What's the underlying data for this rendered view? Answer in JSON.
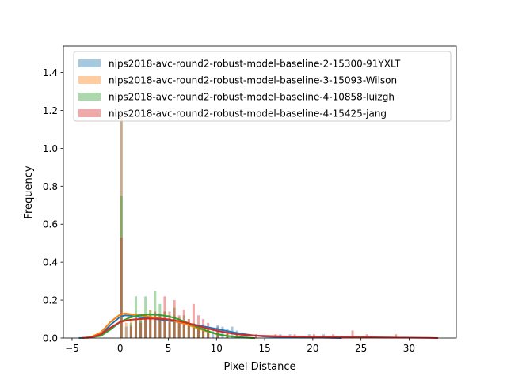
{
  "chart_data": {
    "type": "histogram",
    "title": "",
    "xlabel": "Pixel Distance",
    "ylabel": "Frequency",
    "xlim": [
      -5.9,
      34.9
    ],
    "ylim": [
      0,
      1.54
    ],
    "x_ticks": [
      -5,
      0,
      5,
      10,
      15,
      20,
      25,
      30
    ],
    "y_ticks": [
      0.0,
      0.2,
      0.4,
      0.6,
      0.8,
      1.0,
      1.2,
      1.4
    ],
    "legend_position": "top-right",
    "grid": false,
    "bin_width": 0.25,
    "series": [
      {
        "name": "nips2018-avc-round2-robust-model-baseline-2-15300-91YXLT",
        "color": "#1f77b4",
        "bars": [
          [
            0.0,
            1.15
          ],
          [
            0.5,
            0.06
          ],
          [
            1.0,
            0.07
          ],
          [
            1.5,
            0.12
          ],
          [
            2.0,
            0.09
          ],
          [
            2.5,
            0.1
          ],
          [
            3.0,
            0.13
          ],
          [
            3.5,
            0.11
          ],
          [
            4.0,
            0.09
          ],
          [
            4.5,
            0.1
          ],
          [
            5.0,
            0.08
          ],
          [
            5.5,
            0.1
          ],
          [
            6.0,
            0.09
          ],
          [
            6.5,
            0.07
          ],
          [
            7.0,
            0.08
          ],
          [
            7.5,
            0.06
          ],
          [
            8.0,
            0.07
          ],
          [
            8.5,
            0.05
          ],
          [
            9.0,
            0.06
          ],
          [
            9.5,
            0.05
          ],
          [
            10.0,
            0.07
          ],
          [
            10.5,
            0.06
          ],
          [
            11.0,
            0.05
          ],
          [
            11.5,
            0.06
          ],
          [
            12.0,
            0.04
          ],
          [
            12.5,
            0.03
          ],
          [
            13.0,
            0.02
          ],
          [
            14.0,
            0.02
          ],
          [
            16.5,
            0.02
          ],
          [
            17.5,
            0.02
          ],
          [
            19.5,
            0.02
          ],
          [
            21.0,
            0.02
          ]
        ],
        "kde": [
          [
            -4.3,
            0.0
          ],
          [
            -3.0,
            0.003
          ],
          [
            -2.0,
            0.02
          ],
          [
            -1.0,
            0.07
          ],
          [
            0.0,
            0.112
          ],
          [
            0.5,
            0.12
          ],
          [
            1.0,
            0.118
          ],
          [
            2.0,
            0.11
          ],
          [
            3.0,
            0.105
          ],
          [
            4.0,
            0.098
          ],
          [
            5.0,
            0.092
          ],
          [
            6.0,
            0.085
          ],
          [
            7.0,
            0.077
          ],
          [
            8.0,
            0.068
          ],
          [
            9.0,
            0.058
          ],
          [
            10.0,
            0.048
          ],
          [
            11.0,
            0.038
          ],
          [
            12.0,
            0.028
          ],
          [
            13.0,
            0.02
          ],
          [
            14.0,
            0.013
          ],
          [
            15.0,
            0.008
          ],
          [
            17.0,
            0.004
          ],
          [
            19.0,
            0.003
          ],
          [
            21.0,
            0.002
          ],
          [
            23.0,
            0.0
          ]
        ]
      },
      {
        "name": "nips2018-avc-round2-robust-model-baseline-3-15093-Wilson",
        "color": "#ff7f0e",
        "bars": [
          [
            0.0,
            1.2
          ],
          [
            0.5,
            0.08
          ],
          [
            1.0,
            0.1
          ],
          [
            1.5,
            0.13
          ],
          [
            2.0,
            0.11
          ],
          [
            2.5,
            0.12
          ],
          [
            3.0,
            0.15
          ],
          [
            3.5,
            0.13
          ],
          [
            4.0,
            0.12
          ],
          [
            4.5,
            0.14
          ],
          [
            5.0,
            0.1
          ],
          [
            5.5,
            0.12
          ],
          [
            6.0,
            0.11
          ],
          [
            6.5,
            0.09
          ],
          [
            7.0,
            0.1
          ],
          [
            7.5,
            0.08
          ],
          [
            8.0,
            0.07
          ],
          [
            8.5,
            0.06
          ],
          [
            9.0,
            0.05
          ],
          [
            10.0,
            0.04
          ],
          [
            11.0,
            0.03
          ],
          [
            12.0,
            0.02
          ]
        ],
        "kde": [
          [
            -4.0,
            0.0
          ],
          [
            -3.0,
            0.006
          ],
          [
            -2.0,
            0.03
          ],
          [
            -1.0,
            0.085
          ],
          [
            0.0,
            0.125
          ],
          [
            0.5,
            0.13
          ],
          [
            1.0,
            0.127
          ],
          [
            2.0,
            0.12
          ],
          [
            3.0,
            0.112
          ],
          [
            4.0,
            0.105
          ],
          [
            5.0,
            0.097
          ],
          [
            6.0,
            0.085
          ],
          [
            7.0,
            0.07
          ],
          [
            8.0,
            0.052
          ],
          [
            9.0,
            0.035
          ],
          [
            10.0,
            0.022
          ],
          [
            11.0,
            0.012
          ],
          [
            12.0,
            0.006
          ],
          [
            13.0,
            0.003
          ],
          [
            14.0,
            0.0
          ]
        ]
      },
      {
        "name": "nips2018-avc-round2-robust-model-baseline-4-10858-luizgh",
        "color": "#2ca02c",
        "bars": [
          [
            0.0,
            0.75
          ],
          [
            1.0,
            0.08
          ],
          [
            1.5,
            0.22
          ],
          [
            2.0,
            0.12
          ],
          [
            2.5,
            0.22
          ],
          [
            3.0,
            0.15
          ],
          [
            3.5,
            0.25
          ],
          [
            4.0,
            0.18
          ],
          [
            4.5,
            0.14
          ],
          [
            5.0,
            0.12
          ],
          [
            5.5,
            0.16
          ],
          [
            6.0,
            0.1
          ],
          [
            6.5,
            0.12
          ],
          [
            7.0,
            0.08
          ],
          [
            7.5,
            0.07
          ],
          [
            8.0,
            0.06
          ],
          [
            8.5,
            0.05
          ],
          [
            9.0,
            0.04
          ],
          [
            10.0,
            0.03
          ],
          [
            11.0,
            0.02
          ]
        ],
        "kde": [
          [
            -3.5,
            0.0
          ],
          [
            -2.0,
            0.012
          ],
          [
            -1.0,
            0.045
          ],
          [
            0.0,
            0.085
          ],
          [
            1.0,
            0.108
          ],
          [
            2.0,
            0.12
          ],
          [
            3.0,
            0.124
          ],
          [
            4.0,
            0.122
          ],
          [
            5.0,
            0.115
          ],
          [
            6.0,
            0.1
          ],
          [
            7.0,
            0.08
          ],
          [
            8.0,
            0.058
          ],
          [
            9.0,
            0.038
          ],
          [
            10.0,
            0.022
          ],
          [
            11.0,
            0.012
          ],
          [
            12.0,
            0.006
          ],
          [
            13.0,
            0.002
          ],
          [
            14.0,
            0.0
          ]
        ]
      },
      {
        "name": "nips2018-avc-round2-robust-model-baseline-4-15425-jang",
        "color": "#d62728",
        "bars": [
          [
            0.0,
            0.53
          ],
          [
            1.0,
            0.06
          ],
          [
            1.5,
            0.1
          ],
          [
            2.0,
            0.08
          ],
          [
            2.5,
            0.12
          ],
          [
            3.0,
            0.1
          ],
          [
            3.5,
            0.14
          ],
          [
            4.0,
            0.12
          ],
          [
            4.5,
            0.22
          ],
          [
            5.0,
            0.14
          ],
          [
            5.5,
            0.2
          ],
          [
            6.0,
            0.12
          ],
          [
            6.5,
            0.15
          ],
          [
            7.0,
            0.1
          ],
          [
            7.5,
            0.18
          ],
          [
            8.0,
            0.12
          ],
          [
            8.5,
            0.1
          ],
          [
            9.0,
            0.08
          ],
          [
            10.0,
            0.06
          ],
          [
            11.0,
            0.04
          ],
          [
            12.0,
            0.03
          ],
          [
            14.0,
            0.02
          ],
          [
            16.0,
            0.02
          ],
          [
            18.0,
            0.02
          ],
          [
            20.0,
            0.02
          ],
          [
            22.0,
            0.02
          ],
          [
            24.0,
            0.04
          ],
          [
            25.5,
            0.02
          ],
          [
            28.5,
            0.02
          ]
        ],
        "kde": [
          [
            -4.0,
            0.0
          ],
          [
            -3.0,
            0.004
          ],
          [
            -2.0,
            0.02
          ],
          [
            -1.0,
            0.055
          ],
          [
            0.0,
            0.085
          ],
          [
            1.0,
            0.096
          ],
          [
            2.0,
            0.1
          ],
          [
            3.0,
            0.103
          ],
          [
            4.0,
            0.102
          ],
          [
            5.0,
            0.098
          ],
          [
            6.0,
            0.09
          ],
          [
            7.0,
            0.079
          ],
          [
            8.0,
            0.065
          ],
          [
            9.0,
            0.051
          ],
          [
            10.0,
            0.039
          ],
          [
            11.0,
            0.029
          ],
          [
            12.0,
            0.021
          ],
          [
            13.0,
            0.016
          ],
          [
            14.0,
            0.013
          ],
          [
            16.0,
            0.01
          ],
          [
            18.0,
            0.008
          ],
          [
            20.0,
            0.007
          ],
          [
            22.0,
            0.006
          ],
          [
            24.0,
            0.005
          ],
          [
            26.0,
            0.004
          ],
          [
            28.0,
            0.003
          ],
          [
            30.0,
            0.002
          ],
          [
            32.0,
            0.001
          ],
          [
            33.0,
            0.0
          ]
        ]
      }
    ]
  }
}
